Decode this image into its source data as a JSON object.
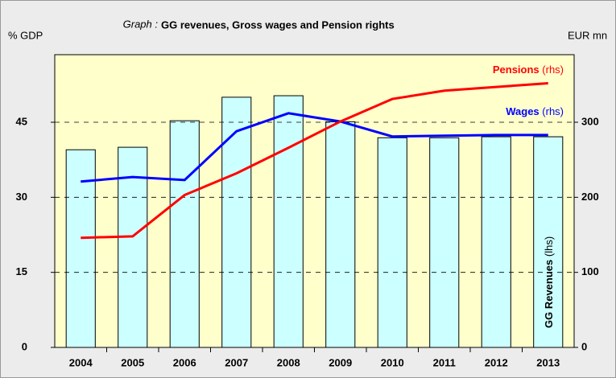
{
  "chart_data": {
    "type": "bar",
    "title_prefix": "Graph :",
    "title": "GG revenues, Gross wages and Pension rights",
    "ylabel": "% GDP",
    "y2label": "EUR mn",
    "categories": [
      "2004",
      "2005",
      "2006",
      "2007",
      "2008",
      "2009",
      "2010",
      "2011",
      "2012",
      "2013"
    ],
    "series": [
      {
        "name": "GG Revenues",
        "axis_note": "(lhs)",
        "type": "bar",
        "color": "#ccffff",
        "values": [
          39.5,
          40.0,
          45.3,
          50.0,
          50.3,
          45.1,
          41.9,
          41.9,
          42.1,
          42.1
        ]
      },
      {
        "name": "Wages",
        "axis_note": "(rhs)",
        "type": "line",
        "axis": "y2",
        "color": "#0000ff",
        "values": [
          221,
          227,
          223,
          288,
          312,
          301,
          281,
          282,
          283,
          283
        ]
      },
      {
        "name": "Pensions",
        "axis_note": "(rhs)",
        "type": "line",
        "axis": "y2",
        "color": "#ff0000",
        "values": [
          146,
          148,
          203,
          232,
          266,
          301,
          331,
          342,
          347,
          352
        ]
      }
    ],
    "ylim": [
      0,
      58.5
    ],
    "yticks": [
      0,
      15,
      30,
      45
    ],
    "y2lim": [
      0,
      390
    ],
    "y2ticks": [
      0,
      100,
      200,
      300
    ],
    "grid": true
  }
}
